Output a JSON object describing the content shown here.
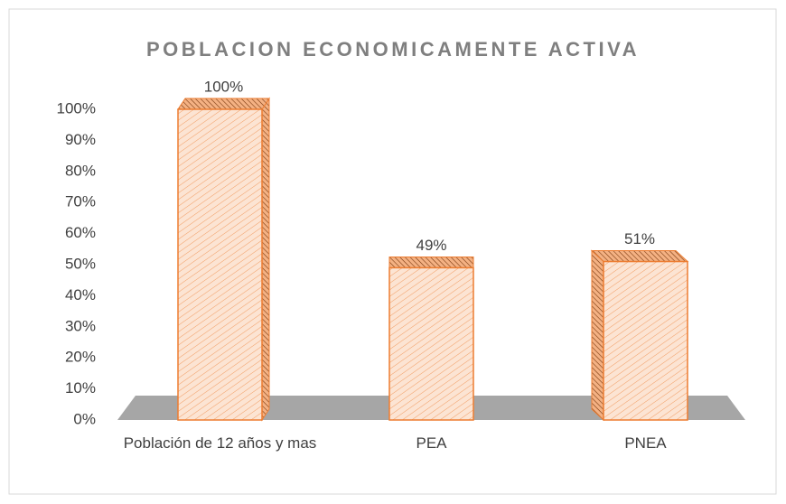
{
  "chart_data": {
    "type": "bar3d",
    "title": "POBLACION ECONOMICAMENTE ACTIVA",
    "categories": [
      "Población de 12 años y mas",
      "PEA",
      "PNEA"
    ],
    "values": [
      100,
      49,
      51
    ],
    "value_labels": [
      "100%",
      "49%",
      "51%"
    ],
    "color": "#ed7d31",
    "ylim": [
      0,
      100
    ],
    "yticks": [
      {
        "value": 0,
        "label": "0%"
      },
      {
        "value": 10,
        "label": "10%"
      },
      {
        "value": 20,
        "label": "20%"
      },
      {
        "value": 30,
        "label": "30%"
      },
      {
        "value": 40,
        "label": "40%"
      },
      {
        "value": 50,
        "label": "50%"
      },
      {
        "value": 60,
        "label": "60%"
      },
      {
        "value": 70,
        "label": "70%"
      },
      {
        "value": 80,
        "label": "80%"
      },
      {
        "value": 90,
        "label": "90%"
      },
      {
        "value": 100,
        "label": "100%"
      }
    ],
    "grid": false
  }
}
